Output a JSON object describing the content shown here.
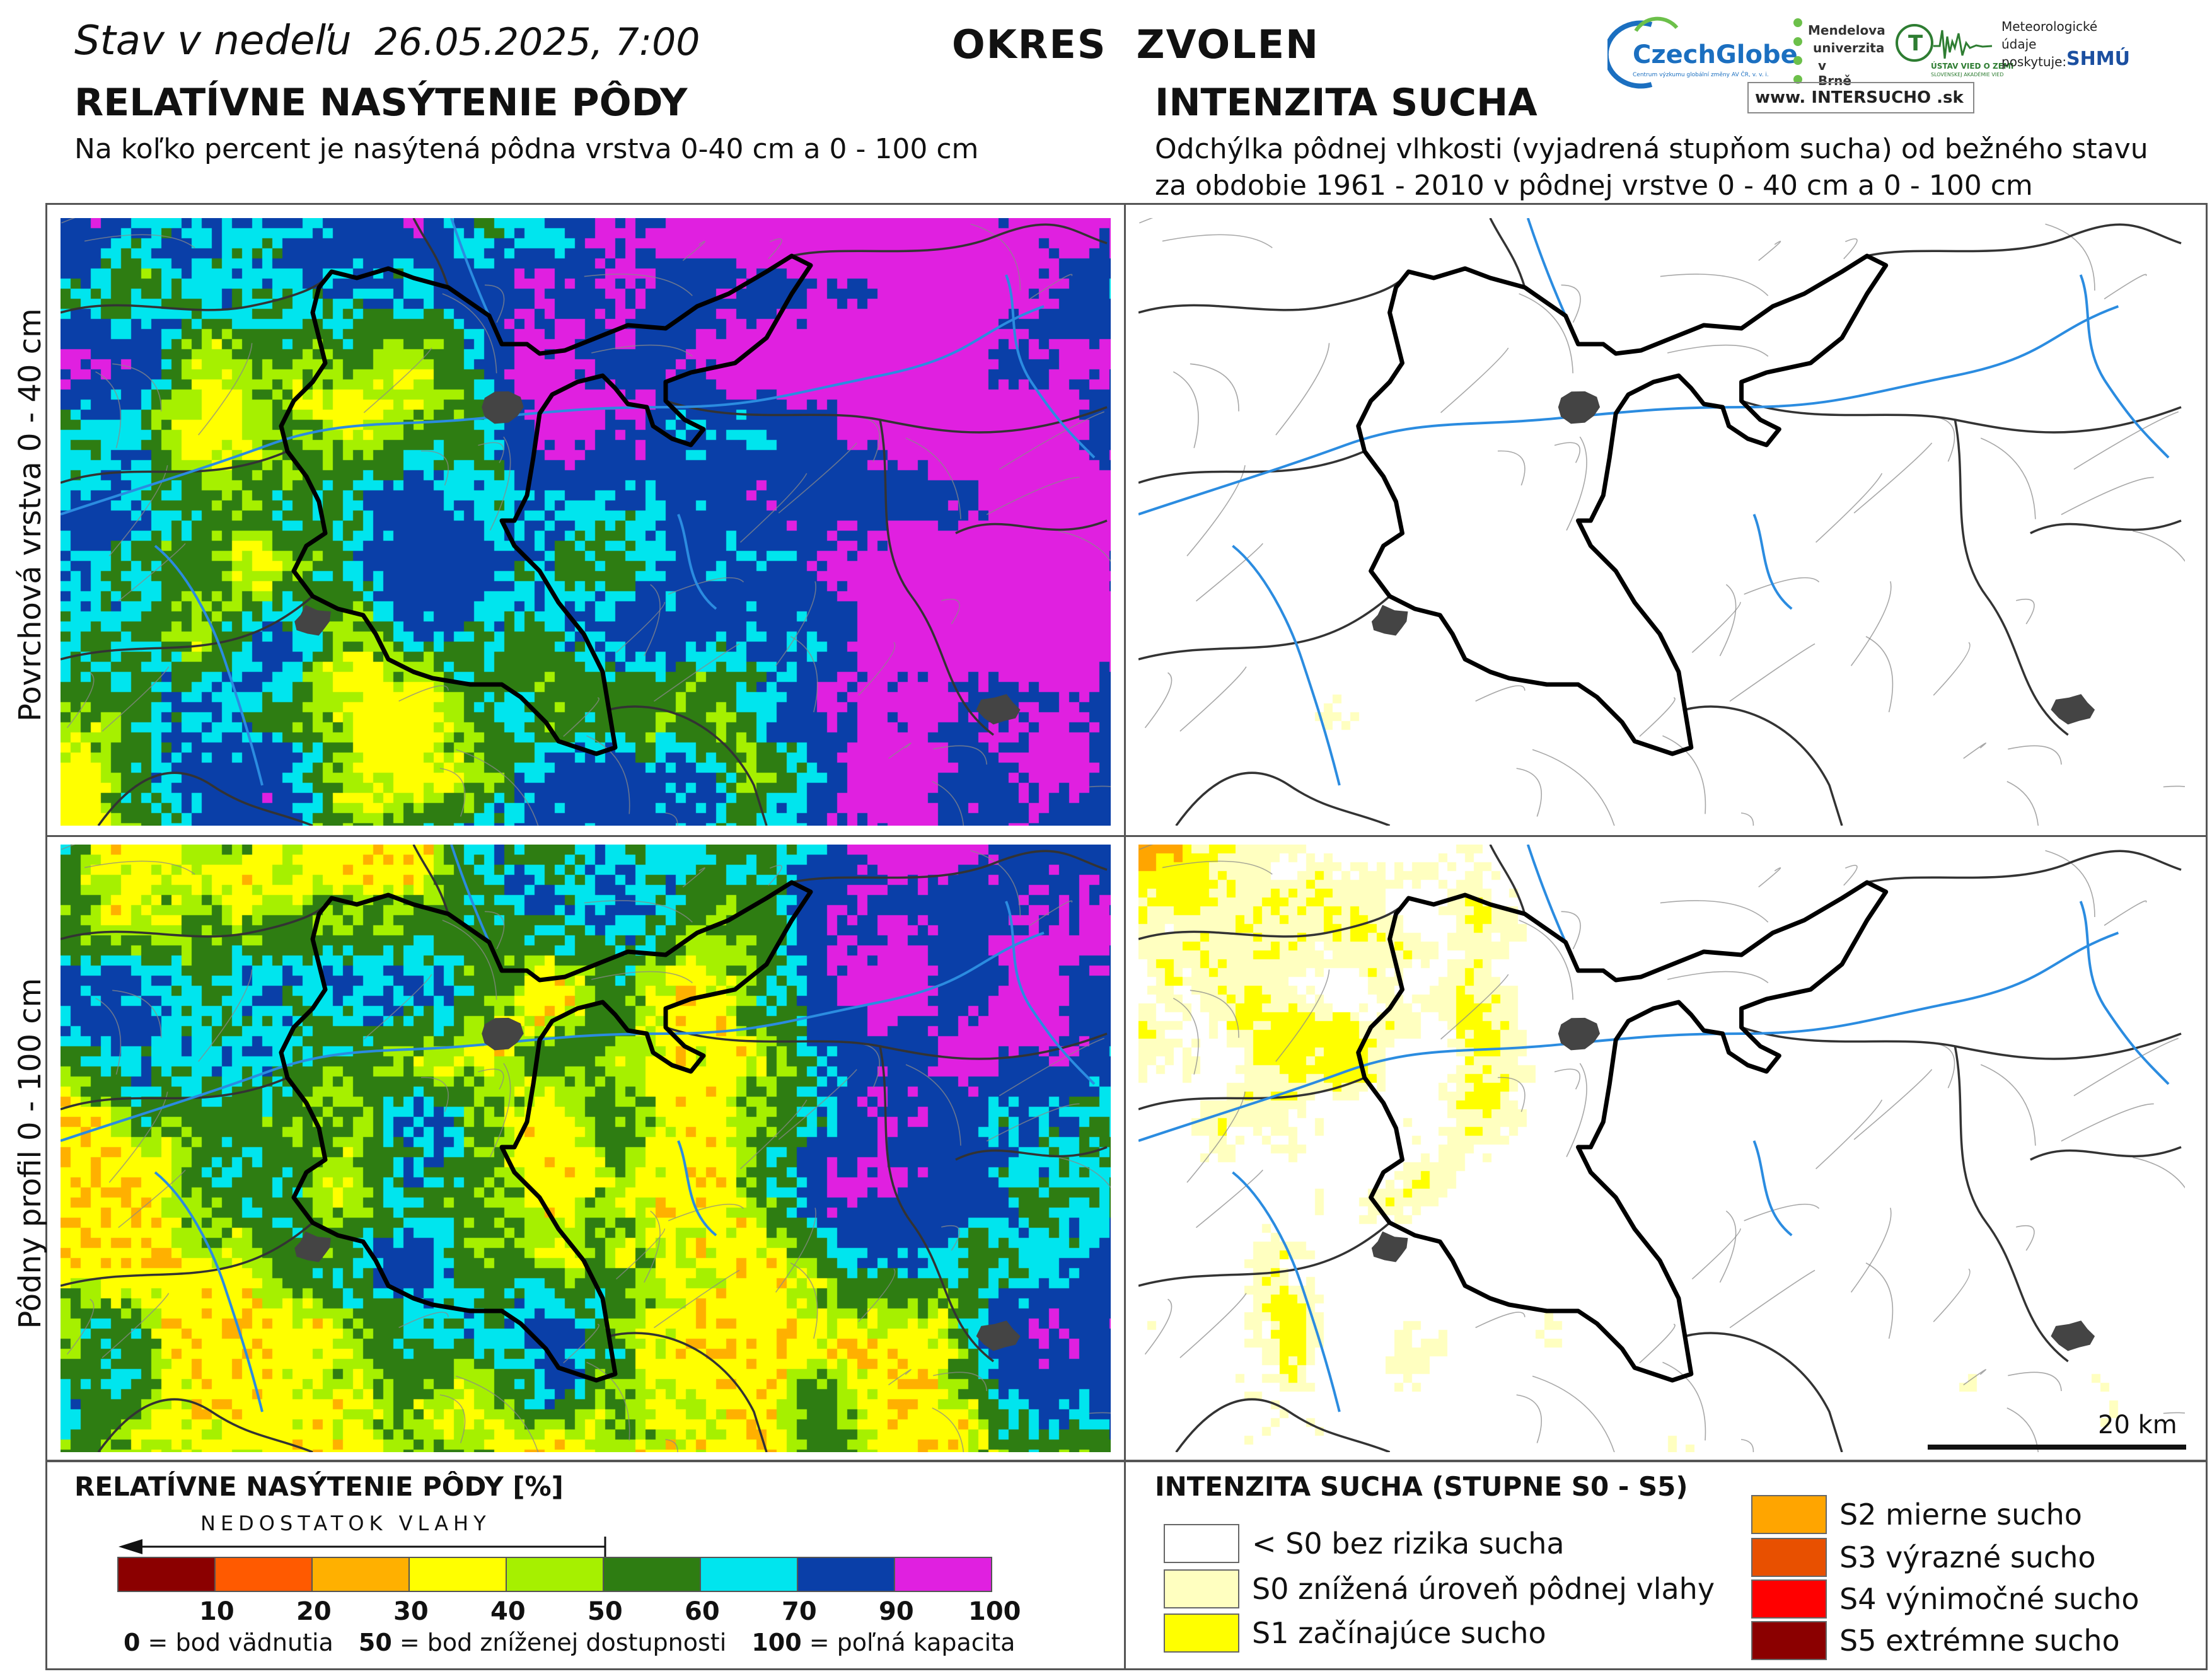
{
  "header": {
    "status_prefix": "Stav v nedeľu",
    "status_date": "26.05.2025, 7:00",
    "district": "OKRES  ZVOLEN"
  },
  "logos": {
    "czechglobe": "CzechGlobe",
    "czechglobe_sub": "Centrum výzkumu globální změny AV ČR, v. v. i.",
    "mendelu_line1": "Mendelova",
    "mendelu_line2": "univerzita",
    "mendelu_line3": "v Brně",
    "uvz": "ÚSTAV VIED O ZEMI",
    "uvz_sub": "SLOVENSKEJ AKADÉMIE VIED",
    "meteo_line1": "Meteorologické",
    "meteo_line2": "údaje",
    "meteo_line3": "poskytuje:",
    "shmu": "SHMÚ",
    "intersucho": "www. INTERSUCHO .sk"
  },
  "left_section": {
    "title": "RELATÍVNE NASÝTENIE PÔDY",
    "subtitle": "Na koľko percent je nasýtená pôdna vrstva 0-40 cm a 0 - 100 cm"
  },
  "right_section": {
    "title": "INTENZITA SUCHA",
    "subtitle_line1": "Odchýlka pôdnej vlhkosti (vyjadrená stupňom sucha) od bežného stavu",
    "subtitle_line2": "za obdobie 1961 - 2010 v pôdnej vrstve 0 - 40 cm a 0 - 100 cm"
  },
  "rows": {
    "top": "Povrchová vrstva 0 - 40 cm",
    "bottom": "Pôdny profil 0 - 100 cm"
  },
  "scale_bar": "20 km",
  "saturation_legend": {
    "title": "RELATÍVNE NASÝTENIE PÔDY [%]",
    "arrow_label": "NEDOSTATOK VLAHY",
    "colors": [
      "#8b0000",
      "#ff5a00",
      "#ffb000",
      "#ffff00",
      "#a6f000",
      "#2e7d12",
      "#00e5ee",
      "#0a3fa8",
      "#e020e0"
    ],
    "ticks": [
      "10",
      "20",
      "30",
      "40",
      "50",
      "60",
      "70",
      "90",
      "100"
    ],
    "note_0_num": "0",
    "note_0_txt": " = bod vädnutia",
    "note_50_num": "50",
    "note_50_txt": " = bod zníženej dostupnosti",
    "note_100_num": "100",
    "note_100_txt": " = poľná kapacita"
  },
  "drought_legend": {
    "title": "INTENZITA SUCHA (STUPNE S0 - S5)",
    "items": [
      {
        "label": "< S0 bez rizika sucha",
        "color": "#ffffff"
      },
      {
        "label": "S0 znížená úroveň pôdnej vlahy",
        "color": "#ffffc0"
      },
      {
        "label": "S1 začínajúce sucho",
        "color": "#ffff00"
      },
      {
        "label": "S2 mierne sucho",
        "color": "#ffa500"
      },
      {
        "label": "S3 výrazné sucho",
        "color": "#e85000"
      },
      {
        "label": "S4 výnimočné sucho",
        "color": "#ff0000"
      },
      {
        "label": "S5 extrémne sucho",
        "color": "#8b0000"
      }
    ]
  }
}
